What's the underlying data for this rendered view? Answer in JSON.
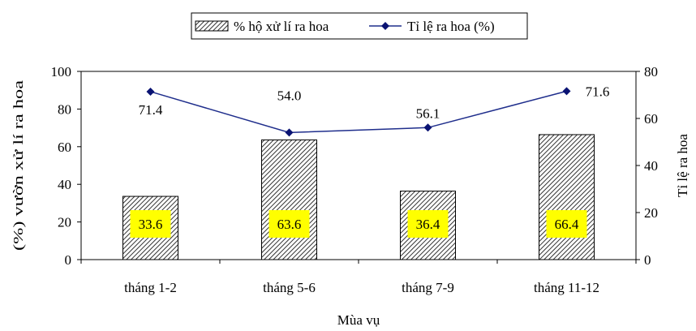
{
  "chart_data": {
    "type": "bar",
    "categories": [
      "tháng 1-2",
      "tháng 5-6",
      "tháng 7-9",
      "tháng 11-12"
    ],
    "series": [
      {
        "name": "% hộ xử lí ra hoa",
        "type": "bar",
        "axis": "left",
        "values": [
          33.6,
          63.6,
          36.4,
          66.4
        ],
        "labels": [
          "33.6",
          "63.6",
          "36.4",
          "66.4"
        ]
      },
      {
        "name": "Tỉ lệ ra hoa (%)",
        "type": "line",
        "axis": "right",
        "values": [
          71.4,
          54.0,
          56.1,
          71.6
        ],
        "labels": [
          "71.4",
          "54.0",
          "56.1",
          "71.6"
        ]
      }
    ],
    "xlabel": "Mùa vụ",
    "ylabel_left": "(%) vườn xử lí ra hoa",
    "ylabel_right": "Tỉ lệ ra hoa",
    "ylim_left": [
      0,
      100
    ],
    "ylim_right": [
      0,
      80
    ],
    "yticks_left": [
      "0",
      "20",
      "40",
      "60",
      "80",
      "100"
    ],
    "yticks_right": [
      "0",
      "20",
      "40",
      "60",
      "80"
    ],
    "legend_position": "top-center",
    "grid": false,
    "colors": {
      "line": "#1F2E8C",
      "marker": "#0A1373",
      "bar_hatch": "#333333",
      "label_bg": "#FFFF00"
    }
  }
}
